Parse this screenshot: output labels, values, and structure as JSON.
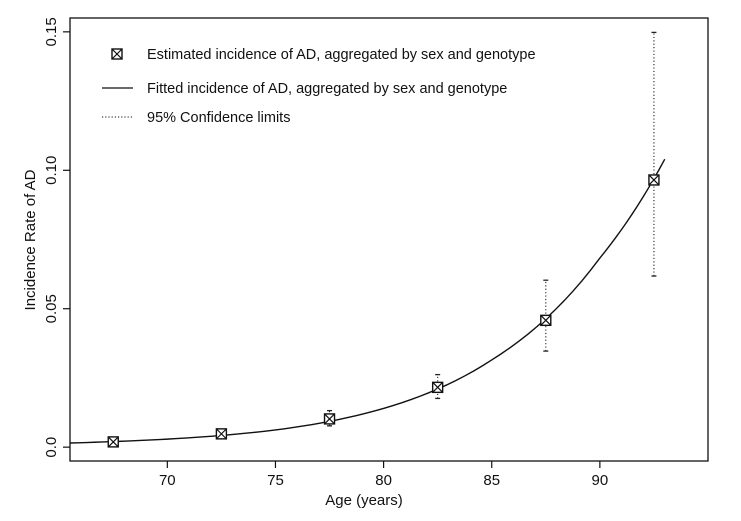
{
  "chart_data": {
    "type": "scatter",
    "title": "",
    "xlabel": "Age (years)",
    "ylabel": "Incidence Rate of AD",
    "xlim": [
      65.5,
      95
    ],
    "ylim": [
      -0.005,
      0.155
    ],
    "x_ticks": [
      70,
      75,
      80,
      85,
      90
    ],
    "x_tick_labels": [
      "70",
      "75",
      "80",
      "85",
      "90"
    ],
    "y_ticks": [
      0.0,
      0.05,
      0.1,
      0.15
    ],
    "y_tick_labels": [
      "0.0",
      "0.05",
      "0.10",
      "0.15"
    ],
    "grid": false,
    "legend_position": "top-left",
    "legend": [
      {
        "marker": "boxed-x",
        "label": "Estimated incidence of AD, aggregated by sex and genotype"
      },
      {
        "marker": "solid-line",
        "label": "Fitted incidence of AD, aggregated by sex and genotype"
      },
      {
        "marker": "dotted-line",
        "label": "95% Confidence limits"
      }
    ],
    "series": [
      {
        "kind": "points",
        "x": [
          67.5,
          72.5,
          77.5,
          82.5,
          87.5,
          92.5
        ],
        "y": [
          0.0019,
          0.0048,
          0.0102,
          0.0216,
          0.0458,
          0.0965
        ]
      },
      {
        "kind": "error_bars",
        "x": [
          67.5,
          72.5,
          77.5,
          82.5,
          87.5,
          92.5
        ],
        "lower": [
          0.0012,
          0.0036,
          0.0077,
          0.0176,
          0.0347,
          0.0618
        ],
        "upper": [
          0.0027,
          0.0062,
          0.0132,
          0.0262,
          0.0603,
          0.1498
        ]
      },
      {
        "kind": "fitted_curve",
        "x": [
          65.5,
          70,
          75,
          80,
          85,
          90,
          93
        ],
        "y": [
          0.0015,
          0.0029,
          0.0062,
          0.014,
          0.0315,
          0.0683,
          0.104
        ]
      }
    ]
  }
}
